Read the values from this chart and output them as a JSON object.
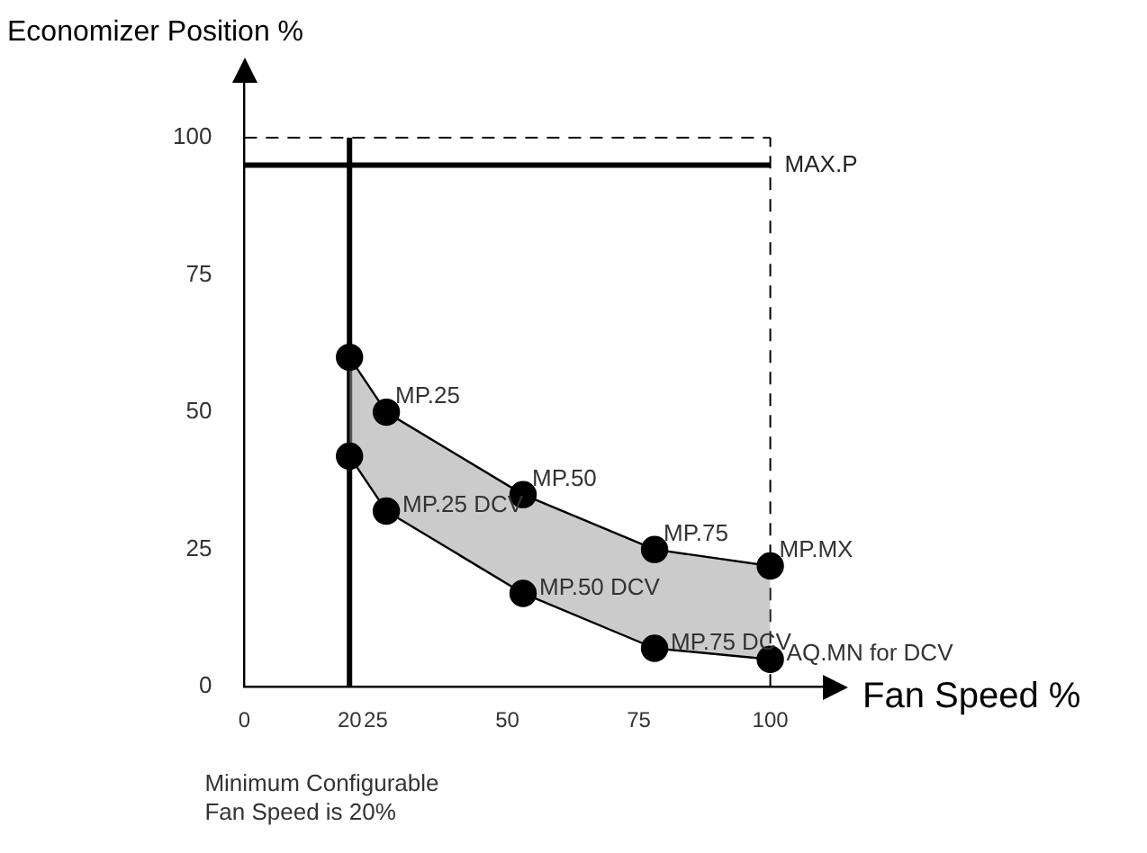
{
  "chart_data": {
    "type": "line",
    "xlabel": "Fan Speed %",
    "ylabel": "Economizer Position %",
    "xlim": [
      0,
      110
    ],
    "xticks": [
      0,
      20,
      25,
      50,
      75,
      100
    ],
    "ylim": [
      0,
      110
    ],
    "yticks": [
      0,
      25,
      50,
      75,
      100
    ],
    "grid": false,
    "legend": false,
    "marker": "circle",
    "line_style": "solid",
    "series": [
      {
        "type": "line",
        "color": "#000000",
        "x": [
          20,
          27,
          53,
          78,
          100
        ],
        "values": [
          60,
          50,
          35,
          25,
          22
        ],
        "lower": [
          42,
          32,
          17,
          7,
          5
        ],
        "upper": [
          60,
          50,
          35,
          25,
          22
        ]
      },
      {
        "type": "line",
        "color": "#000000",
        "x": [
          20,
          27,
          53,
          78,
          100
        ],
        "values": [
          42,
          32,
          17,
          7,
          5
        ]
      }
    ],
    "ref_lines": [
      {
        "axis": "y",
        "value": 100,
        "line_style": "dashed",
        "color": "#000000"
      },
      {
        "axis": "x",
        "value": 100,
        "line_style": "dashed",
        "color": "#000000"
      },
      {
        "axis": "y",
        "value": 95,
        "label": "MAX.P",
        "line_style": "solid",
        "color": "#000000"
      },
      {
        "axis": "x",
        "value": 20,
        "line_style": "solid",
        "color": "#000000"
      }
    ],
    "annotations": [
      {
        "text": "MP.25",
        "x": 27,
        "y": 50
      },
      {
        "text": "MP.50",
        "x": 53,
        "y": 35
      },
      {
        "text": "MP.75",
        "x": 78,
        "y": 25
      },
      {
        "text": "MP.MX",
        "x": 100,
        "y": 22
      },
      {
        "text": "MP.25 DCV",
        "x": 27,
        "y": 32
      },
      {
        "text": "MP.50 DCV",
        "x": 53,
        "y": 17
      },
      {
        "text": "MP.75 DCV",
        "x": 78,
        "y": 7
      },
      {
        "text": "AQ.MN for DCV",
        "x": 100,
        "y": 5
      },
      "Minimum Configurable Fan Speed is 20%"
    ]
  }
}
